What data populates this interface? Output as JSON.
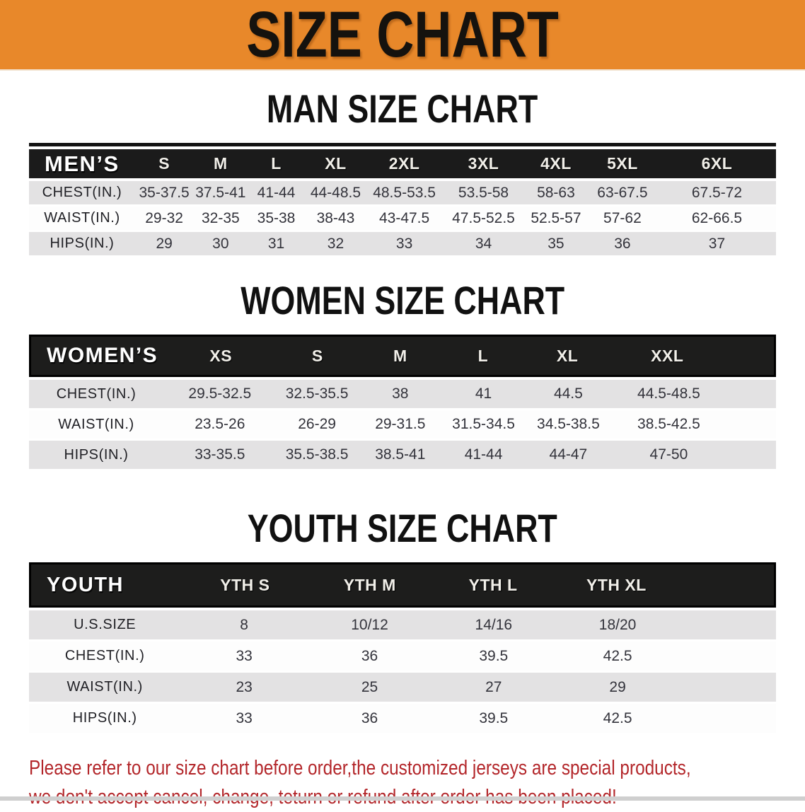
{
  "banner": {
    "title": "SIZE CHART"
  },
  "men": {
    "heading": "MAN SIZE CHART",
    "corner": "MEN’S",
    "sizes": [
      "S",
      "M",
      "L",
      "XL",
      "2XL",
      "3XL",
      "4XL",
      "5XL",
      "6XL"
    ],
    "rows": [
      {
        "label": "CHEST(IN.)",
        "values": [
          "35-37.5",
          "37.5-41",
          "41-44",
          "44-48.5",
          "48.5-53.5",
          "53.5-58",
          "58-63",
          "63-67.5",
          "67.5-72"
        ]
      },
      {
        "label": "WAIST(IN.)",
        "values": [
          "29-32",
          "32-35",
          "35-38",
          "38-43",
          "43-47.5",
          "47.5-52.5",
          "52.5-57",
          "57-62",
          "62-66.5"
        ]
      },
      {
        "label": "HIPS(IN.)",
        "values": [
          "29",
          "30",
          "31",
          "32",
          "33",
          "34",
          "35",
          "36",
          "37"
        ]
      }
    ]
  },
  "women": {
    "heading": "WOMEN SIZE CHART",
    "corner": "WOMEN’S",
    "sizes": [
      "XS",
      "S",
      "M",
      "L",
      "XL",
      "XXL"
    ],
    "rows": [
      {
        "label": "CHEST(IN.)",
        "values": [
          "29.5-32.5",
          "32.5-35.5",
          "38",
          "41",
          "44.5",
          "44.5-48.5"
        ]
      },
      {
        "label": "WAIST(IN.)",
        "values": [
          "23.5-26",
          "26-29",
          "29-31.5",
          "31.5-34.5",
          "34.5-38.5",
          "38.5-42.5"
        ]
      },
      {
        "label": "HIPS(IN.)",
        "values": [
          "33-35.5",
          "35.5-38.5",
          "38.5-41",
          "41-44",
          "44-47",
          "47-50"
        ]
      }
    ]
  },
  "youth": {
    "heading": "YOUTH SIZE CHART",
    "corner": "YOUTH",
    "sizes": [
      "YTH S",
      "YTH M",
      "YTH L",
      "YTH XL"
    ],
    "rows": [
      {
        "label": "U.S.SIZE",
        "values": [
          "8",
          "10/12",
          "14/16",
          "18/20"
        ]
      },
      {
        "label": "CHEST(IN.)",
        "values": [
          "33",
          "36",
          "39.5",
          "42.5"
        ]
      },
      {
        "label": "WAIST(IN.)",
        "values": [
          "23",
          "25",
          "27",
          "29"
        ]
      },
      {
        "label": "HIPS(IN.)",
        "values": [
          "33",
          "36",
          "39.5",
          "42.5"
        ]
      }
    ]
  },
  "note": {
    "line1": "Please refer to our size chart before order,the customized jerseys are special products,",
    "line2": "we don't accept cancel, change, teturn or refund after order has been placed!"
  },
  "colors": {
    "banner_orange": "#e8882a",
    "header_black": "#1b1b1b",
    "row_gray": "#e3e2e3",
    "note_red": "#b3262a"
  }
}
